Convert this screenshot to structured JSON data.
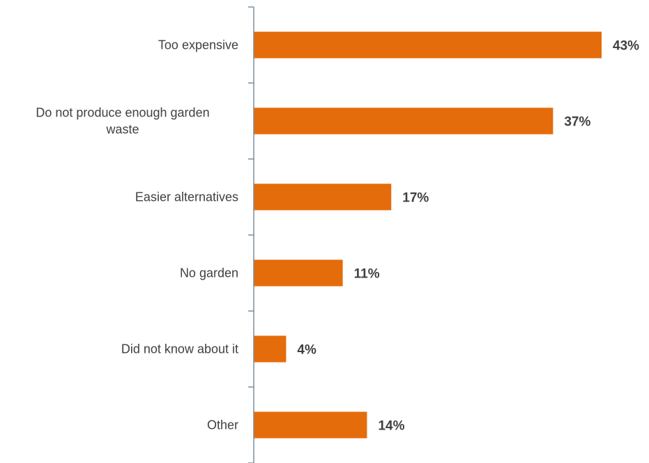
{
  "chart_data": {
    "type": "bar",
    "orientation": "horizontal",
    "categories": [
      "Too expensive",
      "Do not produce enough garden waste",
      "Easier alternatives",
      "No garden",
      "Did not know about it",
      "Other"
    ],
    "category_lines": [
      [
        "Too expensive"
      ],
      [
        "Do not produce enough garden",
        "waste"
      ],
      [
        "Easier alternatives"
      ],
      [
        "No garden"
      ],
      [
        "Did not know about it"
      ],
      [
        "Other"
      ]
    ],
    "values": [
      43,
      37,
      17,
      11,
      4,
      14
    ],
    "value_labels": [
      "43%",
      "37%",
      "17%",
      "11%",
      "4%",
      "14%"
    ],
    "xlim": [
      0,
      43
    ],
    "bar_color": "#E46C0A",
    "axis_color": "#7F8C99",
    "label_color": "#404040",
    "grid": false,
    "legend": "none"
  }
}
